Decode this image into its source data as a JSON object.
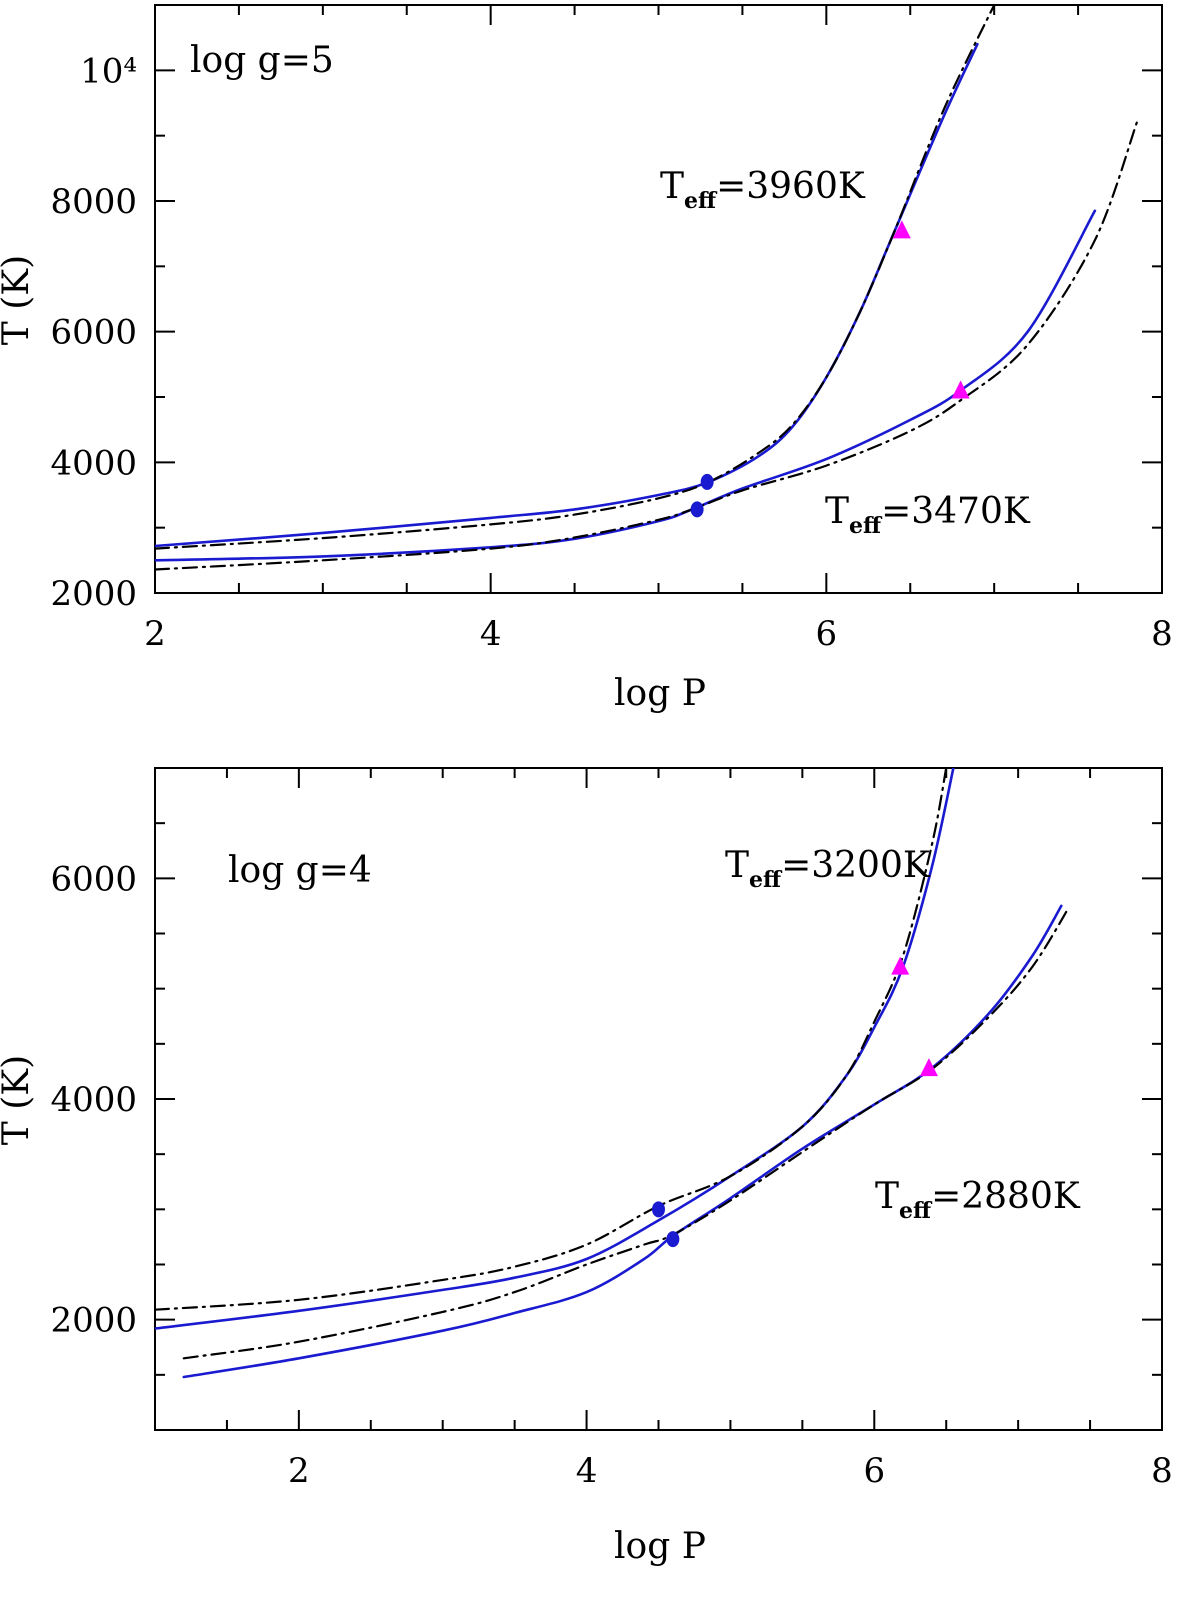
{
  "chart_data": [
    {
      "type": "line",
      "xlabel": "log P",
      "ylabel": "T (K)",
      "xlim": [
        2,
        8
      ],
      "ylim": [
        2000,
        11000
      ],
      "x_ticks": [
        "2",
        "4",
        "6",
        "8"
      ],
      "y_ticks": [
        "2000",
        "4000",
        "6000",
        "8000",
        "10⁴"
      ],
      "annotations": [
        {
          "text": "log g=5"
        },
        {
          "main": "T",
          "sub": "eff",
          "rest": "=3960K"
        },
        {
          "main": "T",
          "sub": "eff",
          "rest": "=3470K"
        }
      ],
      "grid": false,
      "legend": "none",
      "colors": {
        "model": "#1a1ad0",
        "comparison": "#000000",
        "circle_marker": "#1a1ad0",
        "triangle_marker": "#ff00ff"
      },
      "series": [
        {
          "style": "blue-solid",
          "x": [
            2.0,
            3.0,
            4.0,
            4.5,
            5.0,
            5.3,
            5.6,
            5.8,
            6.0,
            6.2,
            6.4,
            6.7,
            6.9
          ],
          "y": [
            2720,
            2920,
            3150,
            3280,
            3500,
            3700,
            4100,
            4550,
            5300,
            6300,
            7500,
            9300,
            10400
          ]
        },
        {
          "style": "black-dashdot",
          "x": [
            2.0,
            3.0,
            4.0,
            4.5,
            5.0,
            5.3,
            5.6,
            5.8,
            6.0,
            6.2,
            6.4,
            6.7,
            7.0
          ],
          "y": [
            2680,
            2840,
            3050,
            3200,
            3450,
            3700,
            4150,
            4580,
            5300,
            6300,
            7500,
            9400,
            11000
          ]
        },
        {
          "style": "blue-solid",
          "x": [
            2.0,
            3.0,
            4.0,
            4.5,
            5.0,
            5.2,
            5.5,
            6.0,
            6.5,
            6.8,
            7.2,
            7.6
          ],
          "y": [
            2500,
            2560,
            2700,
            2830,
            3100,
            3280,
            3600,
            4050,
            4650,
            5100,
            6000,
            7850
          ]
        },
        {
          "style": "black-dashdot",
          "x": [
            2.0,
            3.0,
            4.0,
            4.5,
            5.0,
            5.2,
            5.5,
            6.0,
            6.5,
            6.8,
            7.2,
            7.6,
            7.85
          ],
          "y": [
            2360,
            2500,
            2680,
            2850,
            3120,
            3280,
            3570,
            3950,
            4480,
            4950,
            5800,
            7400,
            9200
          ]
        }
      ],
      "markers": [
        {
          "shape": "circle",
          "x": 5.29,
          "y": 3700
        },
        {
          "shape": "circle",
          "x": 5.23,
          "y": 3280
        },
        {
          "shape": "triangle",
          "x": 6.45,
          "y": 7550
        },
        {
          "shape": "triangle",
          "x": 6.8,
          "y": 5100
        }
      ]
    },
    {
      "type": "line",
      "xlabel": "log P",
      "ylabel": "T (K)",
      "xlim": [
        1,
        8
      ],
      "ylim": [
        1000,
        7000
      ],
      "x_ticks": [
        "2",
        "4",
        "6",
        "8"
      ],
      "y_ticks": [
        "2000",
        "4000",
        "6000"
      ],
      "annotations": [
        {
          "text": "log g=4"
        },
        {
          "main": "T",
          "sub": "eff",
          "rest": "=3200K"
        },
        {
          "main": "T",
          "sub": "eff",
          "rest": "=2880K"
        }
      ],
      "grid": false,
      "legend": "none",
      "colors": {
        "model": "#1a1ad0",
        "comparison": "#000000",
        "circle_marker": "#1a1ad0",
        "triangle_marker": "#ff00ff"
      },
      "series": [
        {
          "style": "blue-solid",
          "x": [
            1.0,
            2.0,
            3.0,
            3.5,
            4.0,
            4.5,
            5.0,
            5.5,
            5.8,
            6.0,
            6.2,
            6.4,
            6.55
          ],
          "y": [
            1920,
            2080,
            2270,
            2380,
            2550,
            2900,
            3300,
            3750,
            4200,
            4650,
            5200,
            6100,
            7000
          ]
        },
        {
          "style": "black-dashdot",
          "x": [
            1.0,
            2.0,
            3.0,
            3.5,
            4.0,
            4.5,
            5.0,
            5.5,
            5.8,
            6.0,
            6.2,
            6.4,
            6.5
          ],
          "y": [
            2090,
            2180,
            2360,
            2480,
            2680,
            3030,
            3300,
            3750,
            4200,
            4700,
            5300,
            6300,
            7000
          ]
        },
        {
          "style": "blue-solid",
          "x": [
            1.2,
            2.0,
            3.0,
            3.5,
            4.0,
            4.4,
            4.6,
            5.0,
            5.5,
            6.0,
            6.4,
            6.8,
            7.1,
            7.3
          ],
          "y": [
            1480,
            1650,
            1900,
            2060,
            2250,
            2550,
            2760,
            3100,
            3550,
            3950,
            4280,
            4780,
            5300,
            5750
          ]
        },
        {
          "style": "black-dashdot",
          "x": [
            1.2,
            2.0,
            3.0,
            3.5,
            4.0,
            4.4,
            4.6,
            5.0,
            5.5,
            6.0,
            6.4,
            6.8,
            7.1,
            7.35
          ],
          "y": [
            1650,
            1800,
            2070,
            2250,
            2500,
            2680,
            2770,
            3080,
            3520,
            3950,
            4270,
            4750,
            5200,
            5730
          ]
        }
      ],
      "markers": [
        {
          "shape": "circle",
          "x": 4.5,
          "y": 3000
        },
        {
          "shape": "circle",
          "x": 4.6,
          "y": 2730
        },
        {
          "shape": "triangle",
          "x": 6.18,
          "y": 5200
        },
        {
          "shape": "triangle",
          "x": 6.38,
          "y": 4280
        }
      ]
    }
  ]
}
